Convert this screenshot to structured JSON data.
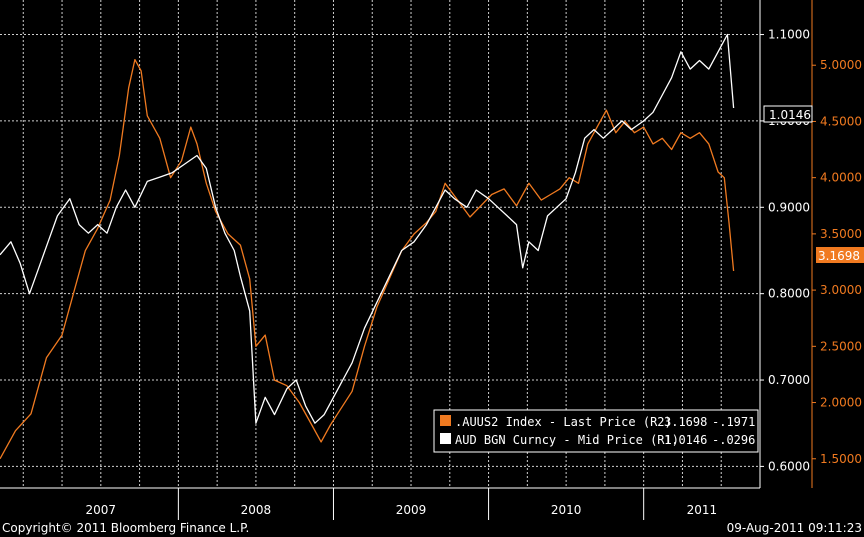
{
  "chart_data": {
    "type": "line",
    "x_axis": {
      "labels": [
        "2007",
        "2008",
        "2009",
        "2010",
        "2011"
      ],
      "range": [
        2006.85,
        2011.75
      ]
    },
    "y_right1": {
      "range": [
        0.575,
        1.14
      ],
      "ticks": [
        "1.1000",
        "1.0000",
        "0.9000",
        "0.8000",
        "0.7000",
        "0.6000"
      ],
      "values": [
        1.1,
        1.0,
        0.9,
        0.8,
        0.7,
        0.6
      ]
    },
    "y_right2": {
      "range": [
        1.24,
        5.58
      ],
      "ticks": [
        "5.0000",
        "4.5000",
        "4.0000",
        "3.5000",
        "3.0000",
        "2.5000",
        "2.0000",
        "1.5000"
      ],
      "values": [
        5.0,
        4.5,
        4.0,
        3.5,
        3.0,
        2.5,
        2.0,
        1.5
      ]
    },
    "grid": true,
    "legend_position": "bottom-right",
    "series": [
      {
        "name": ".AUUS2 Index - Last Price (R2)",
        "axis": "R2",
        "color": "#f07a20",
        "last": "3.1698",
        "change": "-.1971",
        "points": [
          [
            2006.85,
            1.5
          ],
          [
            2006.95,
            1.75
          ],
          [
            2007.05,
            1.9
          ],
          [
            2007.15,
            2.4
          ],
          [
            2007.25,
            2.6
          ],
          [
            2007.33,
            3.0
          ],
          [
            2007.4,
            3.35
          ],
          [
            2007.48,
            3.55
          ],
          [
            2007.56,
            3.8
          ],
          [
            2007.62,
            4.2
          ],
          [
            2007.68,
            4.8
          ],
          [
            2007.72,
            5.05
          ],
          [
            2007.76,
            4.95
          ],
          [
            2007.8,
            4.55
          ],
          [
            2007.88,
            4.35
          ],
          [
            2007.95,
            4.0
          ],
          [
            2008.02,
            4.15
          ],
          [
            2008.08,
            4.45
          ],
          [
            2008.12,
            4.3
          ],
          [
            2008.18,
            3.95
          ],
          [
            2008.24,
            3.7
          ],
          [
            2008.32,
            3.5
          ],
          [
            2008.4,
            3.4
          ],
          [
            2008.46,
            3.1
          ],
          [
            2008.5,
            2.5
          ],
          [
            2008.56,
            2.6
          ],
          [
            2008.62,
            2.2
          ],
          [
            2008.7,
            2.15
          ],
          [
            2008.78,
            2.0
          ],
          [
            2008.86,
            1.8
          ],
          [
            2008.92,
            1.65
          ],
          [
            2008.98,
            1.8
          ],
          [
            2009.05,
            1.95
          ],
          [
            2009.12,
            2.1
          ],
          [
            2009.2,
            2.5
          ],
          [
            2009.28,
            2.85
          ],
          [
            2009.36,
            3.1
          ],
          [
            2009.44,
            3.35
          ],
          [
            2009.52,
            3.5
          ],
          [
            2009.6,
            3.6
          ],
          [
            2009.66,
            3.7
          ],
          [
            2009.72,
            3.95
          ],
          [
            2009.8,
            3.8
          ],
          [
            2009.88,
            3.65
          ],
          [
            2009.95,
            3.75
          ],
          [
            2010.02,
            3.85
          ],
          [
            2010.1,
            3.9
          ],
          [
            2010.18,
            3.75
          ],
          [
            2010.26,
            3.95
          ],
          [
            2010.34,
            3.8
          ],
          [
            2010.4,
            3.85
          ],
          [
            2010.46,
            3.9
          ],
          [
            2010.52,
            4.0
          ],
          [
            2010.58,
            3.95
          ],
          [
            2010.64,
            4.3
          ],
          [
            2010.7,
            4.45
          ],
          [
            2010.76,
            4.6
          ],
          [
            2010.82,
            4.4
          ],
          [
            2010.88,
            4.5
          ],
          [
            2010.94,
            4.4
          ],
          [
            2011.0,
            4.45
          ],
          [
            2011.06,
            4.3
          ],
          [
            2011.12,
            4.35
          ],
          [
            2011.18,
            4.25
          ],
          [
            2011.24,
            4.4
          ],
          [
            2011.3,
            4.35
          ],
          [
            2011.36,
            4.4
          ],
          [
            2011.42,
            4.3
          ],
          [
            2011.48,
            4.05
          ],
          [
            2011.52,
            4.0
          ],
          [
            2011.55,
            3.6
          ],
          [
            2011.58,
            3.17
          ]
        ]
      },
      {
        "name": "AUD BGN Curncy - Mid Price (R1)",
        "axis": "R1",
        "color": "#ffffff",
        "last": "1.0146",
        "change": "-.0296",
        "points": [
          [
            2006.85,
            0.845
          ],
          [
            2006.92,
            0.86
          ],
          [
            2006.98,
            0.835
          ],
          [
            2007.04,
            0.8
          ],
          [
            2007.1,
            0.83
          ],
          [
            2007.16,
            0.86
          ],
          [
            2007.22,
            0.89
          ],
          [
            2007.3,
            0.91
          ],
          [
            2007.36,
            0.88
          ],
          [
            2007.42,
            0.87
          ],
          [
            2007.48,
            0.88
          ],
          [
            2007.54,
            0.87
          ],
          [
            2007.6,
            0.9
          ],
          [
            2007.66,
            0.92
          ],
          [
            2007.72,
            0.9
          ],
          [
            2007.8,
            0.93
          ],
          [
            2007.88,
            0.935
          ],
          [
            2007.96,
            0.94
          ],
          [
            2008.04,
            0.95
          ],
          [
            2008.12,
            0.96
          ],
          [
            2008.18,
            0.945
          ],
          [
            2008.24,
            0.9
          ],
          [
            2008.3,
            0.87
          ],
          [
            2008.36,
            0.85
          ],
          [
            2008.4,
            0.82
          ],
          [
            2008.46,
            0.78
          ],
          [
            2008.5,
            0.65
          ],
          [
            2008.56,
            0.68
          ],
          [
            2008.62,
            0.66
          ],
          [
            2008.7,
            0.69
          ],
          [
            2008.76,
            0.7
          ],
          [
            2008.82,
            0.67
          ],
          [
            2008.88,
            0.65
          ],
          [
            2008.94,
            0.66
          ],
          [
            2009.0,
            0.68
          ],
          [
            2009.06,
            0.7
          ],
          [
            2009.12,
            0.72
          ],
          [
            2009.2,
            0.76
          ],
          [
            2009.28,
            0.79
          ],
          [
            2009.36,
            0.82
          ],
          [
            2009.44,
            0.85
          ],
          [
            2009.52,
            0.86
          ],
          [
            2009.6,
            0.88
          ],
          [
            2009.66,
            0.9
          ],
          [
            2009.72,
            0.92
          ],
          [
            2009.78,
            0.91
          ],
          [
            2009.86,
            0.9
          ],
          [
            2009.92,
            0.92
          ],
          [
            2010.0,
            0.91
          ],
          [
            2010.06,
            0.9
          ],
          [
            2010.12,
            0.89
          ],
          [
            2010.18,
            0.88
          ],
          [
            2010.22,
            0.83
          ],
          [
            2010.26,
            0.86
          ],
          [
            2010.32,
            0.85
          ],
          [
            2010.38,
            0.89
          ],
          [
            2010.44,
            0.9
          ],
          [
            2010.5,
            0.91
          ],
          [
            2010.56,
            0.94
          ],
          [
            2010.62,
            0.98
          ],
          [
            2010.68,
            0.99
          ],
          [
            2010.74,
            0.98
          ],
          [
            2010.8,
            0.99
          ],
          [
            2010.86,
            1.0
          ],
          [
            2010.92,
            0.99
          ],
          [
            2011.0,
            1.0
          ],
          [
            2011.06,
            1.01
          ],
          [
            2011.12,
            1.03
          ],
          [
            2011.18,
            1.05
          ],
          [
            2011.24,
            1.08
          ],
          [
            2011.3,
            1.06
          ],
          [
            2011.36,
            1.07
          ],
          [
            2011.42,
            1.06
          ],
          [
            2011.48,
            1.08
          ],
          [
            2011.54,
            1.1
          ],
          [
            2011.58,
            1.015
          ]
        ]
      }
    ]
  },
  "labels": {
    "r1_last": "1.0146",
    "r2_last": "3.1698"
  },
  "legend": [
    {
      "name": ".AUUS2 Index - Last Price (R2)",
      "last": "3.1698",
      "change": "-.1971",
      "color": "#f07a20"
    },
    {
      "name": "AUD BGN Curncy - Mid Price (R1)",
      "last": "1.0146",
      "change": "-.0296",
      "color": "#ffffff"
    }
  ],
  "footer": {
    "left": "Copyright© 2011 Bloomberg Finance L.P.",
    "right": "09-Aug-2011 09:11:23"
  }
}
